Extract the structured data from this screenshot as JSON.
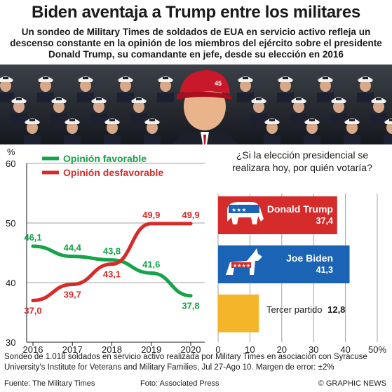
{
  "header": {
    "title": "Biden aventaja a Trump entre los militares",
    "subtitle": "Un sondeo de Military Times de soldados de EUA en servicio activo refleja un descenso constante en la opinión de los miembros del ejército sobre el presidente Donald Trump, su comandante en jefe, desde su elección en 2016"
  },
  "photo": {
    "badge": "45"
  },
  "colors": {
    "favorable": "#16a34a",
    "unfavorable": "#d62b2b",
    "trump": "#d62b2b",
    "biden": "#1b63b5",
    "third": "#f5b52a",
    "grid": "#a0a0a0"
  },
  "chart_data": [
    {
      "type": "line",
      "x": [
        "2016",
        "2017",
        "2018",
        "2019",
        "2020"
      ],
      "ylim": [
        30,
        60
      ],
      "yticks": [
        30,
        40,
        50,
        60
      ],
      "ylabel": "%",
      "legend_position": "top-left",
      "series": [
        {
          "name": "Opinión favorable",
          "values": [
            46.1,
            44.4,
            43.8,
            41.6,
            37.8
          ],
          "labels": [
            "46,1",
            "44,4",
            "43,8",
            "41,6",
            "37,8"
          ]
        },
        {
          "name": "Opinión desfavorable",
          "values": [
            37.0,
            39.7,
            43.1,
            49.9,
            49.9
          ],
          "labels": [
            "37,0",
            "39,7",
            "43,1",
            "49,9",
            "49,9"
          ]
        }
      ]
    },
    {
      "type": "bar",
      "orientation": "horizontal",
      "title": "¿Si la elección presidencial se realizara hoy, por quién votaría?",
      "categories": [
        "Donald Trump",
        "Joe Biden",
        "Tercer partido"
      ],
      "values": [
        37.4,
        41.3,
        12.8
      ],
      "labels": [
        "37,4",
        "41,3",
        "12,8"
      ],
      "xlim": [
        0,
        50
      ],
      "xticks": [
        "0",
        "10",
        "20",
        "30",
        "40",
        "50%"
      ]
    }
  ],
  "note": "Sondeo de 1.018 soldados en servicio activo realizada por Military Times en asociación con Syracuse University's Institute for Veterans and Military Families, Jul 27-Ago 10. Margen de error: ±2%",
  "footer": {
    "source": "Fuente: The Military Times",
    "photo_credit": "Foto: Associated Press",
    "copyright": "© GRAPHIC NEWS"
  }
}
